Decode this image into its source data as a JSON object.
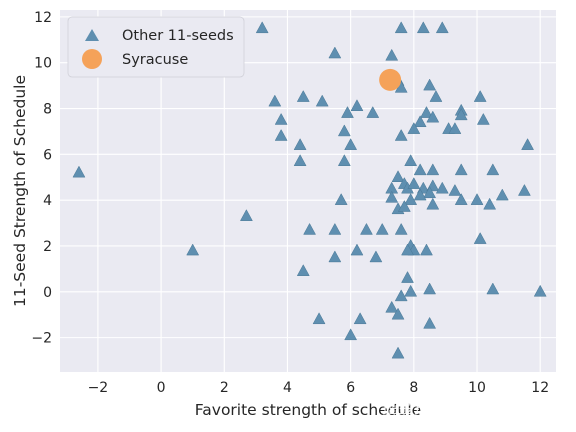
{
  "chart_data": {
    "type": "scatter",
    "title": "",
    "xlabel": "Favorite strength of schedule",
    "ylabel": "11-Seed Strength of Schedule",
    "xlim": [
      -3.2,
      12.5
    ],
    "ylim": [
      -3.5,
      12.3
    ],
    "xticks": [
      -2,
      0,
      2,
      4,
      6,
      8,
      10,
      12
    ],
    "yticks": [
      -2,
      0,
      2,
      4,
      6,
      8,
      10,
      12
    ],
    "grid": true,
    "legend_position": "top-left",
    "series": [
      {
        "name": "Other 11-seeds",
        "marker": "triangle",
        "color": "#5f8fb0",
        "points": [
          [
            3.2,
            11.5
          ],
          [
            7.6,
            11.5
          ],
          [
            8.3,
            11.5
          ],
          [
            8.9,
            11.5
          ],
          [
            5.5,
            10.4
          ],
          [
            7.3,
            10.3
          ],
          [
            8.5,
            9.0
          ],
          [
            7.5,
            9.2
          ],
          [
            7.6,
            8.9
          ],
          [
            3.6,
            8.3
          ],
          [
            4.5,
            8.5
          ],
          [
            5.1,
            8.3
          ],
          [
            6.2,
            8.1
          ],
          [
            5.9,
            7.8
          ],
          [
            6.7,
            7.8
          ],
          [
            8.7,
            8.5
          ],
          [
            9.5,
            7.9
          ],
          [
            10.1,
            8.5
          ],
          [
            9.5,
            7.7
          ],
          [
            8.4,
            7.8
          ],
          [
            8.6,
            7.6
          ],
          [
            8.2,
            7.4
          ],
          [
            8.0,
            7.1
          ],
          [
            3.8,
            7.5
          ],
          [
            3.8,
            6.8
          ],
          [
            5.8,
            7.0
          ],
          [
            7.6,
            6.8
          ],
          [
            9.1,
            7.1
          ],
          [
            9.3,
            7.1
          ],
          [
            10.2,
            7.5
          ],
          [
            11.6,
            6.4
          ],
          [
            4.4,
            6.4
          ],
          [
            6.0,
            6.4
          ],
          [
            4.4,
            5.7
          ],
          [
            5.8,
            5.7
          ],
          [
            -2.6,
            5.2
          ],
          [
            7.9,
            5.7
          ],
          [
            8.2,
            5.3
          ],
          [
            8.6,
            5.3
          ],
          [
            9.5,
            5.3
          ],
          [
            10.5,
            5.3
          ],
          [
            7.5,
            5.0
          ],
          [
            7.7,
            4.7
          ],
          [
            7.8,
            4.5
          ],
          [
            8.0,
            4.7
          ],
          [
            7.3,
            4.5
          ],
          [
            7.3,
            4.1
          ],
          [
            8.3,
            4.5
          ],
          [
            8.6,
            4.6
          ],
          [
            8.5,
            4.3
          ],
          [
            8.9,
            4.5
          ],
          [
            9.3,
            4.4
          ],
          [
            8.2,
            4.2
          ],
          [
            5.7,
            4.0
          ],
          [
            7.9,
            4.0
          ],
          [
            7.5,
            3.6
          ],
          [
            7.7,
            3.7
          ],
          [
            8.6,
            3.8
          ],
          [
            9.5,
            4.0
          ],
          [
            10.0,
            4.0
          ],
          [
            10.4,
            3.8
          ],
          [
            10.8,
            4.2
          ],
          [
            11.5,
            4.4
          ],
          [
            2.7,
            3.3
          ],
          [
            4.7,
            2.7
          ],
          [
            5.5,
            2.7
          ],
          [
            6.5,
            2.7
          ],
          [
            7.0,
            2.7
          ],
          [
            7.6,
            2.7
          ],
          [
            7.9,
            2.0
          ],
          [
            8.0,
            1.8
          ],
          [
            8.4,
            1.8
          ],
          [
            7.8,
            1.8
          ],
          [
            10.1,
            2.3
          ],
          [
            1.0,
            1.8
          ],
          [
            6.2,
            1.8
          ],
          [
            5.5,
            1.5
          ],
          [
            6.8,
            1.5
          ],
          [
            4.5,
            0.9
          ],
          [
            7.8,
            0.6
          ],
          [
            7.9,
            0.0
          ],
          [
            7.6,
            -0.2
          ],
          [
            8.5,
            0.1
          ],
          [
            10.5,
            0.1
          ],
          [
            12.0,
            0.0
          ],
          [
            7.3,
            -0.7
          ],
          [
            7.5,
            -1.0
          ],
          [
            5.0,
            -1.2
          ],
          [
            6.3,
            -1.2
          ],
          [
            8.5,
            -1.4
          ],
          [
            6.0,
            -1.9
          ],
          [
            7.5,
            -2.7
          ]
        ]
      },
      {
        "name": "Syracuse",
        "marker": "circle",
        "color": "#f5a259",
        "points": [
          [
            7.25,
            9.25
          ]
        ]
      }
    ]
  },
  "watermark": {
    "text": "掘金技术社区 @ 布客飞龙"
  }
}
